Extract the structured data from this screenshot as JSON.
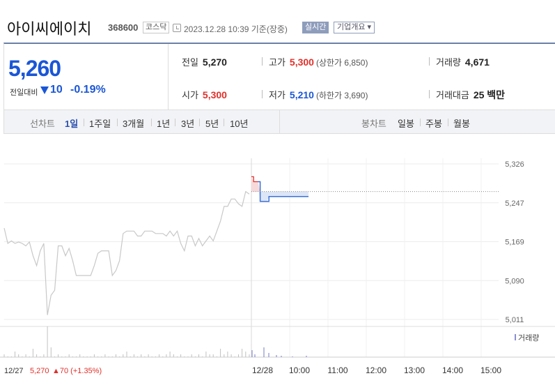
{
  "header": {
    "stock_name": "아이씨에이치",
    "stock_code": "368600",
    "market": "코스닥",
    "timestamp": "2023.12.28 10:39 기준(장중)",
    "realtime_label": "실시간",
    "company_label": "기업개요 ▾"
  },
  "summary": {
    "price": "5,260",
    "change_label": "전일대비",
    "change_value": "10",
    "change_rate": "-0.19%",
    "prev_label": "전일",
    "prev_value": "5,270",
    "high_label": "고가",
    "high_value": "5,300",
    "high_sub": "(상한가 6,850)",
    "volume_label": "거래량",
    "volume_value": "4,671",
    "open_label": "시가",
    "open_value": "5,300",
    "low_label": "저가",
    "low_value": "5,210",
    "low_sub": "(하한가 3,690)",
    "amount_label": "거래대금",
    "amount_value": "25 백만"
  },
  "tabs": {
    "line_chart_label": "선차트",
    "periods": [
      "1일",
      "1주일",
      "3개월",
      "1년",
      "3년",
      "5년",
      "10년"
    ],
    "candle_label": "봉차트",
    "candles": [
      "일봉",
      "주봉",
      "월봉"
    ]
  },
  "colors": {
    "up": "#e0302a",
    "down": "#1a56d6",
    "today_line": "#3a6fd8",
    "prev_line": "#c8c8c8",
    "accent": "#6b7fa8"
  },
  "chart_data": {
    "type": "line",
    "y_ticks": [
      "5,326",
      "5,247",
      "5,169",
      "5,090",
      "5,011"
    ],
    "ylim": [
      5011,
      5326
    ],
    "x_ticks": [
      "12/28",
      "10:00",
      "11:00",
      "12:00",
      "13:00",
      "14:00",
      "15:00"
    ],
    "prev_close": 5270,
    "prev_day_label": "12/27",
    "prev_day_price": "5,270",
    "prev_day_change": "▲70 (+1.35%)",
    "volume_label": "거래량",
    "series": [
      {
        "values": [
          5196,
          5165,
          5170,
          5165,
          5168,
          5165,
          5160,
          5168,
          5140,
          5120,
          5150,
          5165,
          5020,
          5060,
          5070,
          5160,
          5160,
          5140,
          5155,
          5130,
          5100,
          5100,
          5100,
          5100,
          5100,
          5120,
          5145,
          5150,
          5150,
          5150,
          5100,
          5110,
          5130,
          5185,
          5190,
          5190,
          5190,
          5180,
          5180,
          5190,
          5190,
          5190,
          5185,
          5185,
          5185,
          5180,
          5190,
          5180,
          5190,
          5165,
          5150,
          5180,
          5180,
          5160,
          5175,
          5160,
          5170,
          5180,
          5170,
          5190,
          5210,
          5240,
          5240,
          5255,
          5255,
          5245,
          5240,
          5270,
          5265
        ]
      },
      {
        "values": [
          5300,
          5290,
          5290,
          5290,
          5250,
          5250,
          5250,
          5250,
          5260,
          5260,
          5260,
          5260,
          5260,
          5260,
          5260,
          5260,
          5260,
          5260,
          5260,
          5260,
          5260,
          5260,
          5260,
          5260,
          5260,
          5260,
          5260
        ]
      }
    ]
  }
}
